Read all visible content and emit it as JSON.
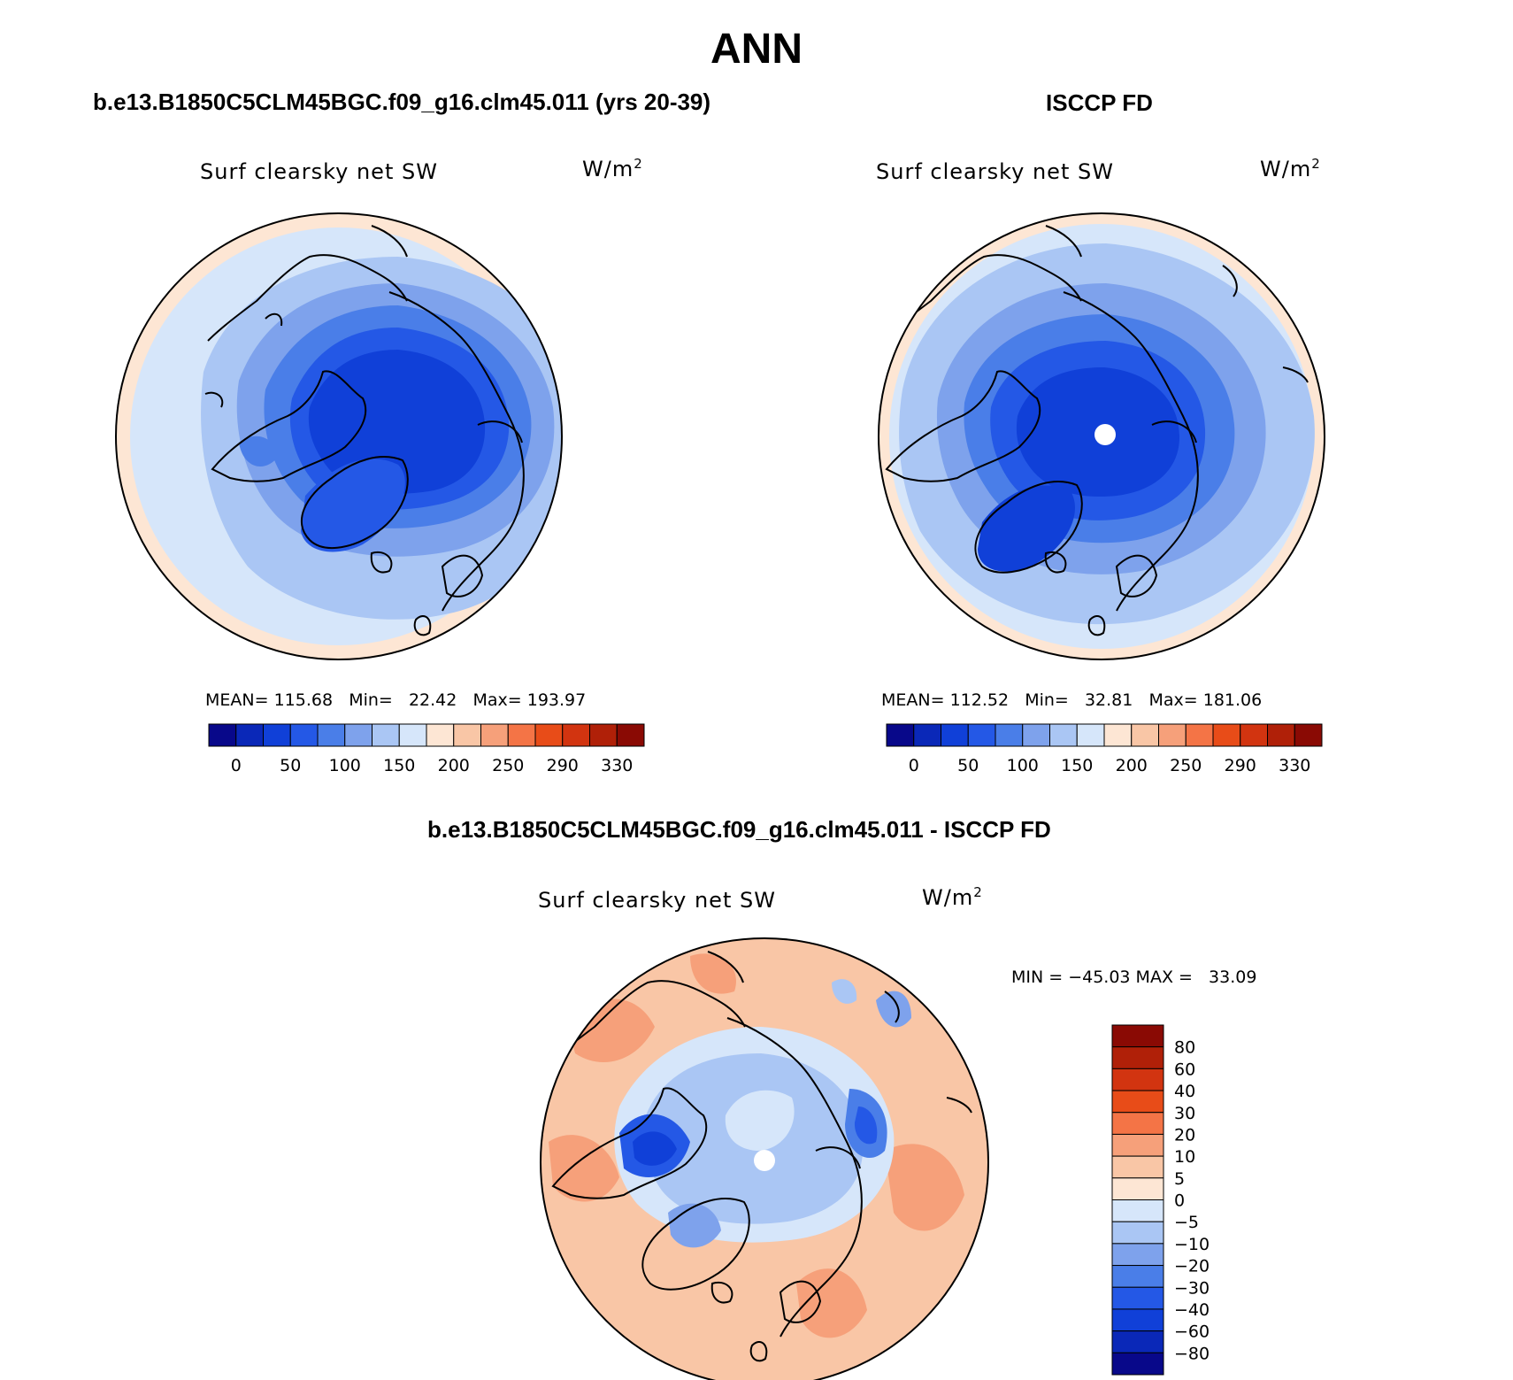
{
  "title": "ANN",
  "panels": [
    {
      "title": "b.e13.B1850C5CLM45BGC.f09_g16.clm45.011 (yrs 20-39)",
      "variable": "Surf clearsky net SW",
      "units_base": "W/m",
      "units_exp": "2",
      "mean_label": "MEAN=",
      "mean": "115.68",
      "min_label": "Min=",
      "min": "22.42",
      "max_label": "Max=",
      "max": "193.97"
    },
    {
      "title": "ISCCP FD",
      "variable": "Surf clearsky net SW",
      "units_base": "W/m",
      "units_exp": "2",
      "mean_label": "MEAN=",
      "mean": "112.52",
      "min_label": "Min=",
      "min": "32.81",
      "max_label": "Max=",
      "max": "181.06"
    },
    {
      "title": "b.e13.B1850C5CLM45BGC.f09_g16.clm45.011 - ISCCP FD",
      "variable": "Surf clearsky net SW",
      "units_base": "W/m",
      "units_exp": "2",
      "minmax": "MIN = −45.03 MAX =   33.09"
    }
  ],
  "colorbars": {
    "absolute": {
      "colors": [
        "#08088a",
        "#0a28b8",
        "#1040d8",
        "#2458e6",
        "#4a7ee8",
        "#7ea2ec",
        "#aac6f4",
        "#d6e6fa",
        "#fde6d4",
        "#f9c6a6",
        "#f6a07a",
        "#f47446",
        "#e84c18",
        "#d23410",
        "#b02008",
        "#8a0a04"
      ],
      "ticks": [
        "0",
        "50",
        "100",
        "150",
        "200",
        "250",
        "290",
        "330"
      ]
    },
    "difference": {
      "colors": [
        "#08088a",
        "#0a28b8",
        "#1040d8",
        "#2458e6",
        "#4a7ee8",
        "#7ea2ec",
        "#aac6f4",
        "#d6e6fa",
        "#fde6d4",
        "#f9c6a6",
        "#f6a07a",
        "#f47446",
        "#e84c18",
        "#d23410",
        "#b02008",
        "#8a0a04"
      ],
      "ticks": [
        "80",
        "60",
        "40",
        "30",
        "20",
        "10",
        "5",
        "0",
        "−5",
        "−10",
        "−20",
        "−30",
        "−40",
        "−60",
        "−80"
      ]
    }
  },
  "map": {
    "region": "Arctic (north polar stereographic)",
    "missing_data_at_pole": true
  }
}
